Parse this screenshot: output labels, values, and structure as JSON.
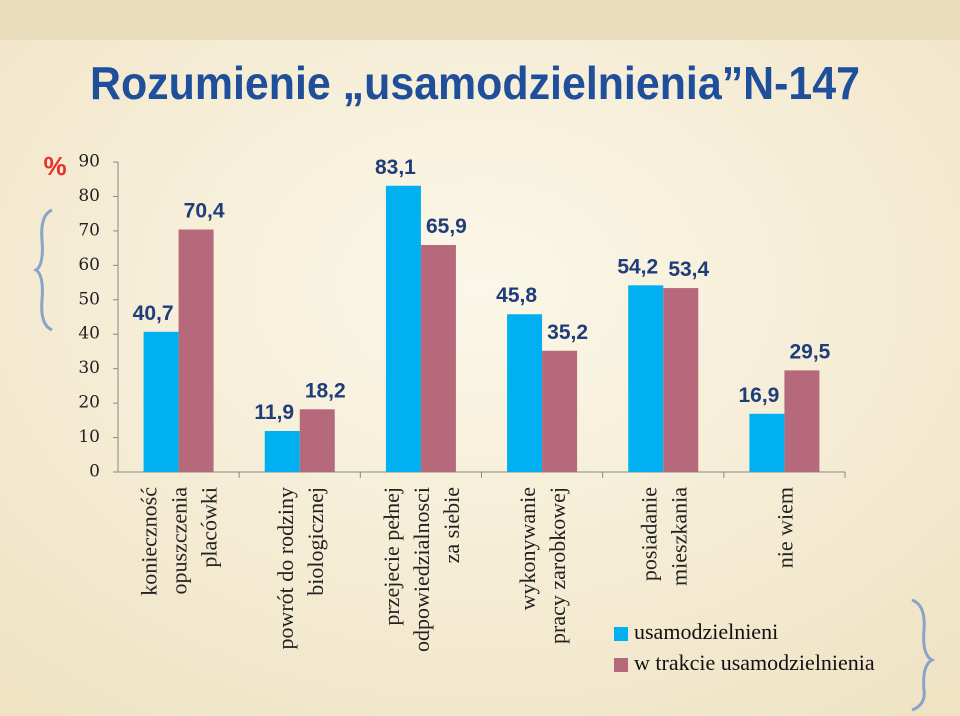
{
  "chart_data": {
    "type": "bar",
    "title": "Rozumienie „usamodzielnienia”N-147",
    "y_label": "%",
    "categories": [
      "konieczność\nopuszczenia\nplacówki",
      "powrót do rodziny\nbiologicznej",
      "przejecie pełnej\nodpowiedzialnosci\nza siebie",
      "wykonywanie\npracy zarobkowej",
      "posiadanie\nmieszkania",
      "nie wiem"
    ],
    "series": [
      {
        "name": "usamodzielnieni",
        "color": "#00b0f0",
        "values": [
          40.7,
          11.9,
          83.1,
          45.8,
          54.2,
          16.9
        ],
        "value_labels": [
          "40,7",
          "11,9",
          "83,1",
          "45,8",
          "54,2",
          "16,9"
        ]
      },
      {
        "name": "w trakcie usamodzielnienia",
        "color": "#b5697b",
        "values": [
          70.4,
          18.2,
          65.9,
          35.2,
          53.4,
          29.5
        ],
        "value_labels": [
          "70,4",
          "18,2",
          "65,9",
          "35,2",
          "53,4",
          "29,5"
        ]
      }
    ],
    "ylim": [
      0,
      90
    ],
    "yticks": [
      0,
      10,
      20,
      30,
      40,
      50,
      60,
      70,
      80,
      90
    ]
  }
}
